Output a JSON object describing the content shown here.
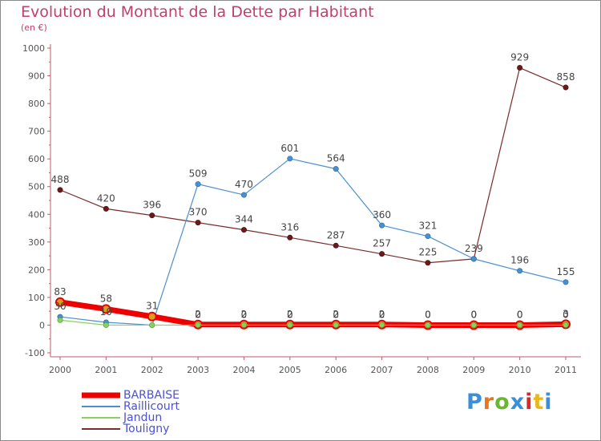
{
  "title": "Evolution du Montant de la Dette par Habitant",
  "subtitle": "(en €)",
  "logo": {
    "text": "Proxiti",
    "colors": [
      "#3a8fd6",
      "#e8761c",
      "#6ab632",
      "#3a8fd6",
      "#d32b2b",
      "#e8b81c",
      "#3a8fd6"
    ]
  },
  "chart_data": {
    "type": "line",
    "x": [
      "2000",
      "2001",
      "2002",
      "2003",
      "2004",
      "2005",
      "2006",
      "2007",
      "2008",
      "2009",
      "2010",
      "2011"
    ],
    "ylim": [
      -100,
      1000
    ],
    "yticks": [
      -100,
      0,
      100,
      200,
      300,
      400,
      500,
      600,
      700,
      800,
      900,
      1000
    ],
    "grid": false,
    "legend_position": "bottom-left",
    "series": [
      {
        "name": "BARBAISE",
        "color": "#ee0000",
        "values": [
          83,
          58,
          31,
          2,
          2,
          2,
          2,
          2,
          0,
          0,
          0,
          3
        ],
        "labels": [
          "83",
          "58",
          "31",
          "2",
          "2",
          "2",
          "2",
          "2",
          "0",
          "0",
          "0",
          "3"
        ]
      },
      {
        "name": "Raillicourt",
        "color": "#4a90d0",
        "values": [
          30,
          10,
          0,
          509,
          470,
          601,
          564,
          360,
          321,
          239,
          196,
          155
        ],
        "labels": [
          "30",
          "10",
          "",
          "509",
          "470",
          "601",
          "564",
          "360",
          "321",
          "",
          "196",
          "155"
        ]
      },
      {
        "name": "Jandun",
        "color": "#88d060",
        "values": [
          18,
          0,
          0,
          0,
          0,
          0,
          0,
          0,
          0,
          0,
          0,
          0
        ],
        "labels": [
          "",
          "",
          "",
          "0",
          "0",
          "0",
          "0",
          "0",
          "0",
          "0",
          "0",
          "0"
        ]
      },
      {
        "name": "Touligny",
        "color": "#7a2a2a",
        "values": [
          488,
          420,
          396,
          370,
          344,
          316,
          287,
          257,
          225,
          239,
          929,
          858
        ],
        "labels": [
          "488",
          "420",
          "396",
          "370",
          "344",
          "316",
          "287",
          "257",
          "225",
          "239",
          "929",
          "858"
        ]
      }
    ]
  }
}
